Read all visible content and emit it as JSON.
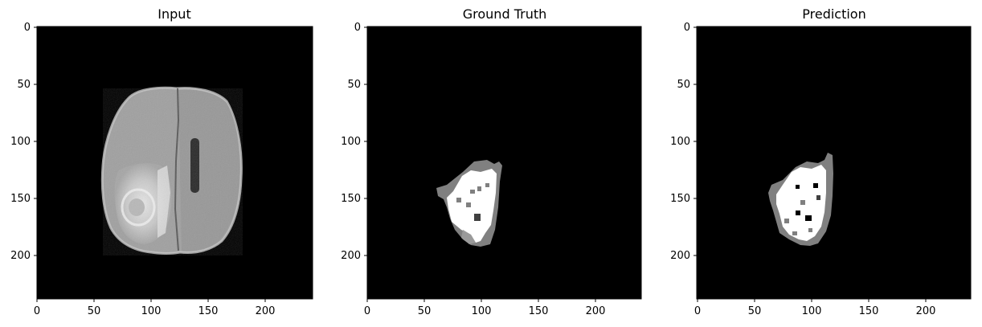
{
  "panels": [
    {
      "id": "input",
      "title": "Input",
      "x_ticks": [
        "0",
        "50",
        "100",
        "150",
        "200"
      ],
      "y_ticks": [
        "0",
        "50",
        "100",
        "150",
        "200"
      ]
    },
    {
      "id": "ground-truth",
      "title": "Ground Truth",
      "x_ticks": [
        "0",
        "50",
        "100",
        "150",
        "200"
      ],
      "y_ticks": [
        "0",
        "50",
        "100",
        "150",
        "200"
      ]
    },
    {
      "id": "prediction",
      "title": "Prediction",
      "x_ticks": [
        "0",
        "50",
        "100",
        "150",
        "200"
      ],
      "y_ticks": [
        "0",
        "50",
        "100",
        "150",
        "200"
      ]
    }
  ],
  "colors": {
    "background": "#000000",
    "brain_tissue": "#a0a0a0",
    "mask_gray": "#808080",
    "mask_white": "#ffffff"
  }
}
